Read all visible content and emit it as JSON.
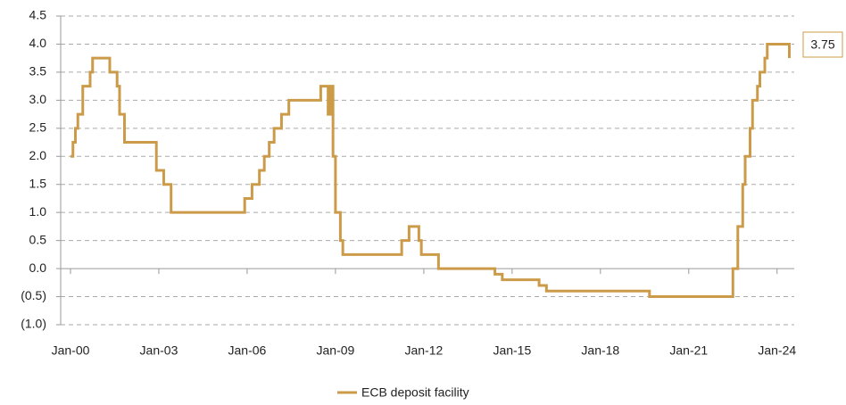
{
  "chart_data": {
    "type": "line",
    "step": true,
    "x": [
      "2000-01",
      "2000-02",
      "2000-02",
      "2000-03",
      "2000-03",
      "2000-04",
      "2000-04",
      "2000-06",
      "2000-06",
      "2000-09",
      "2000-09",
      "2000-10",
      "2000-10",
      "2001-05",
      "2001-05",
      "2001-08",
      "2001-08",
      "2001-09",
      "2001-09",
      "2001-11",
      "2001-11",
      "2002-12",
      "2002-12",
      "2003-03",
      "2003-03",
      "2003-06",
      "2003-06",
      "2005-12",
      "2005-12",
      "2006-03",
      "2006-03",
      "2006-06",
      "2006-06",
      "2006-08",
      "2006-08",
      "2006-10",
      "2006-10",
      "2006-12",
      "2006-12",
      "2007-03",
      "2007-03",
      "2007-06",
      "2007-06",
      "2008-07",
      "2008-07",
      "2008-10",
      "2008-10",
      "2008-11",
      "2008-11",
      "2008-12",
      "2008-12",
      "2009-01",
      "2009-01",
      "2009-03",
      "2009-03",
      "2009-04",
      "2009-04",
      "2011-04",
      "2011-04",
      "2011-07",
      "2011-07",
      "2011-11",
      "2011-11",
      "2011-12",
      "2011-12",
      "2012-07",
      "2012-07",
      "2014-06",
      "2014-06",
      "2014-09",
      "2014-09",
      "2015-12",
      "2015-12",
      "2016-03",
      "2016-03",
      "2019-09",
      "2019-09",
      "2022-07",
      "2022-07",
      "2022-09",
      "2022-09",
      "2022-11",
      "2022-11",
      "2022-12",
      "2022-12",
      "2023-02",
      "2023-02",
      "2023-03",
      "2023-03",
      "2023-05",
      "2023-05",
      "2023-06",
      "2023-06",
      "2023-08",
      "2023-08",
      "2023-09",
      "2023-09",
      "2024-06",
      "2024-06"
    ],
    "series": [
      {
        "name": "ECB deposit facility",
        "color": "#cc9b4a",
        "values": [
          2.0,
          2.0,
          2.25,
          2.25,
          2.5,
          2.5,
          2.75,
          2.75,
          3.25,
          3.25,
          3.5,
          3.5,
          3.75,
          3.75,
          3.5,
          3.5,
          3.25,
          3.25,
          2.75,
          2.75,
          2.25,
          2.25,
          1.75,
          1.75,
          1.5,
          1.5,
          1.0,
          1.0,
          1.25,
          1.25,
          1.5,
          1.5,
          1.75,
          1.75,
          2.0,
          2.0,
          2.25,
          2.25,
          2.5,
          2.5,
          2.75,
          2.75,
          3.0,
          3.0,
          3.25,
          3.25,
          2.75,
          2.75,
          3.25,
          3.25,
          2.0,
          2.0,
          1.0,
          1.0,
          0.5,
          0.5,
          0.25,
          0.25,
          0.5,
          0.5,
          0.75,
          0.75,
          0.5,
          0.5,
          0.25,
          0.25,
          0.0,
          0.0,
          -0.1,
          -0.1,
          -0.2,
          -0.2,
          -0.3,
          -0.3,
          -0.4,
          -0.4,
          -0.5,
          -0.5,
          0.0,
          0.0,
          0.75,
          0.75,
          1.5,
          1.5,
          2.0,
          2.0,
          2.5,
          2.5,
          3.0,
          3.0,
          3.25,
          3.25,
          3.5,
          3.5,
          3.75,
          3.75,
          4.0,
          4.0,
          3.75
        ]
      }
    ],
    "end_label": "3.75",
    "xlim": [
      "1999-09",
      "2024-08"
    ],
    "xticks": [
      {
        "value": "2000-01",
        "label": "Jan-00"
      },
      {
        "value": "2003-01",
        "label": "Jan-03"
      },
      {
        "value": "2006-01",
        "label": "Jan-06"
      },
      {
        "value": "2009-01",
        "label": "Jan-09"
      },
      {
        "value": "2012-01",
        "label": "Jan-12"
      },
      {
        "value": "2015-01",
        "label": "Jan-15"
      },
      {
        "value": "2018-01",
        "label": "Jan-18"
      },
      {
        "value": "2021-01",
        "label": "Jan-21"
      },
      {
        "value": "2024-01",
        "label": "Jan-24"
      }
    ],
    "ylim": [
      -1,
      4.5
    ],
    "yticks": [
      4.5,
      {
        "value": 4,
        "label": "4.0"
      },
      3.5,
      {
        "value": 3,
        "label": "3.0"
      },
      2.5,
      {
        "value": 2,
        "label": "2.0"
      },
      1.5,
      {
        "value": 1,
        "label": "1.0"
      },
      0.5,
      {
        "value": 0,
        "label": "0.0"
      },
      {
        "value": -0.5,
        "label": "(0.5)"
      },
      {
        "value": -1,
        "label": "(1.0)"
      }
    ],
    "grid": true,
    "legend": "bottom"
  }
}
